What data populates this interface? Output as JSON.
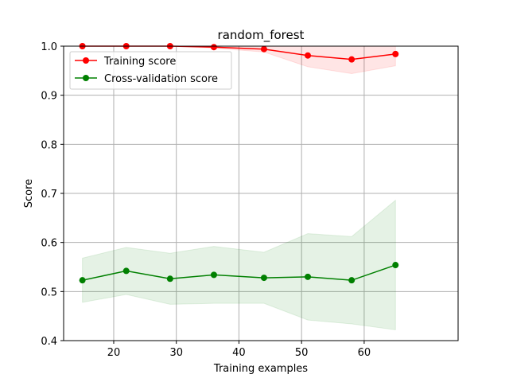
{
  "chart_data": {
    "type": "line",
    "title": "random_forest",
    "xlabel": "Training examples",
    "ylabel": "Score",
    "xlim": [
      12,
      75
    ],
    "ylim": [
      0.4,
      1.0
    ],
    "x_ticks": [
      20,
      30,
      40,
      50,
      60
    ],
    "y_ticks": [
      0.4,
      0.5,
      0.6,
      0.7,
      0.8,
      0.9,
      1.0
    ],
    "x_tick_labels": [
      "20",
      "30",
      "40",
      "50",
      "60"
    ],
    "y_tick_labels": [
      "0.4",
      "0.5",
      "0.6",
      "0.7",
      "0.8",
      "0.9",
      "1.0"
    ],
    "grid": true,
    "legend_position": "top-left",
    "x": [
      15,
      22,
      29,
      36,
      44,
      51,
      58,
      65
    ],
    "series": [
      {
        "name": "Training score",
        "color": "#ff0000",
        "band_color": "#ff0000",
        "values": [
          1.0,
          1.0,
          1.0,
          0.998,
          0.994,
          0.981,
          0.973,
          0.984
        ],
        "lower": [
          1.0,
          1.0,
          1.0,
          0.996,
          0.988,
          0.958,
          0.944,
          0.96
        ],
        "upper": [
          1.0,
          1.0,
          1.0,
          1.0,
          1.0,
          1.0,
          1.0,
          1.0
        ]
      },
      {
        "name": "Cross-validation score",
        "color": "#008000",
        "band_color": "#008000",
        "values": [
          0.523,
          0.542,
          0.526,
          0.534,
          0.528,
          0.53,
          0.523,
          0.554
        ],
        "lower": [
          0.478,
          0.494,
          0.474,
          0.476,
          0.476,
          0.442,
          0.434,
          0.422
        ],
        "upper": [
          0.568,
          0.59,
          0.578,
          0.592,
          0.58,
          0.618,
          0.612,
          0.686
        ]
      }
    ]
  }
}
